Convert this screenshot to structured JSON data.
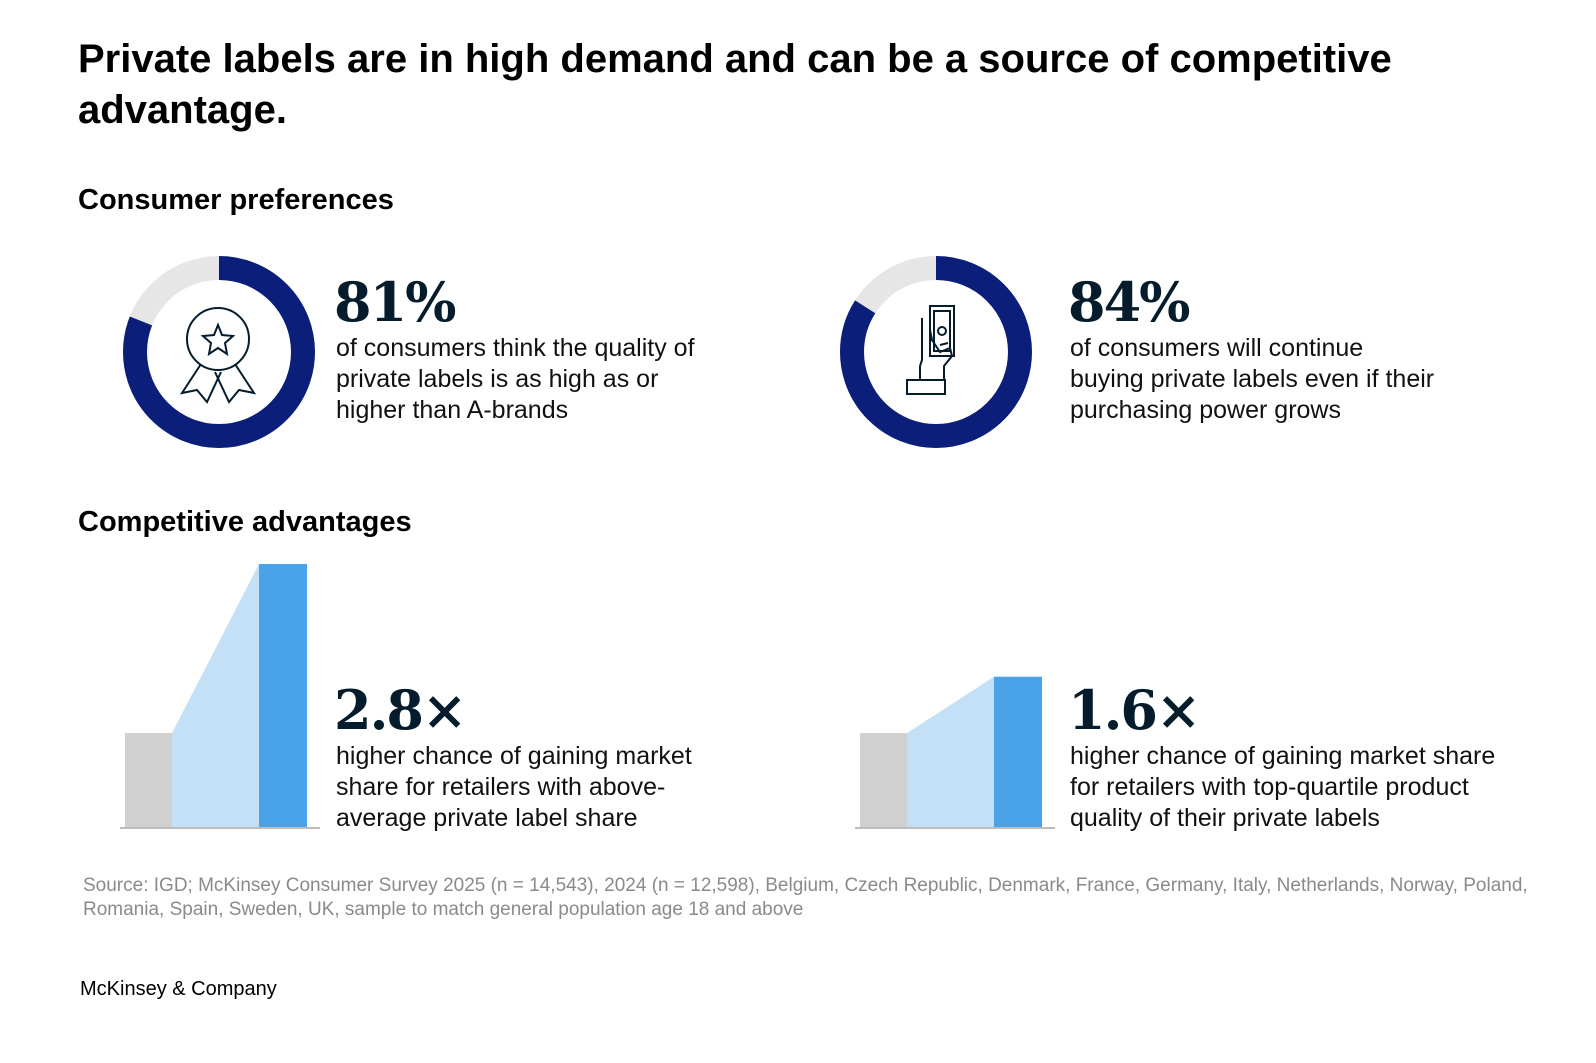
{
  "title": "Private labels are in high demand and can be a source of competitive advantage.",
  "sections": {
    "consumer_preferences": "Consumer preferences",
    "competitive_advantages": "Competitive advantages"
  },
  "stats": [
    {
      "value": "81%",
      "description": "of consumers think the quality of private labels is as high as or higher than A-brands",
      "icon": "award-ribbon-icon"
    },
    {
      "value": "84%",
      "description": "of consumers will continue buying private labels even if their purchasing power grows",
      "icon": "hand-holding-money-icon"
    },
    {
      "value": "2.8×",
      "description": "higher chance of gaining market share for retailers with above-average private label share"
    },
    {
      "value": "1.6×",
      "description": "higher chance of gaining market share for retailers with top-quartile product quality of their private labels"
    }
  ],
  "colors": {
    "donut_fill": "#0b1f7a",
    "donut_track": "#e6e6e6",
    "baseline_bar": "#d0d0d0",
    "wedge": "#c3e0f7",
    "highlight_bar": "#4aa3e8",
    "value_text": "#051c2c"
  },
  "chart_data": [
    {
      "type": "pie",
      "series": [
        {
          "values": [
            81,
            19
          ]
        }
      ]
    },
    {
      "type": "pie",
      "series": [
        {
          "values": [
            84,
            16
          ]
        }
      ]
    },
    {
      "type": "bar",
      "values": [
        1,
        2.8
      ]
    },
    {
      "type": "bar",
      "values": [
        1,
        1.6
      ]
    }
  ],
  "source": "Source: IGD; McKinsey Consumer Survey 2025 (n = 14,543), 2024 (n = 12,598), Belgium, Czech Republic, Denmark, France, Germany, Italy, Netherlands, Norway, Poland, Romania, Spain, Sweden, UK, sample to match general population age 18 and above",
  "logo_text": "McKinsey & Company"
}
